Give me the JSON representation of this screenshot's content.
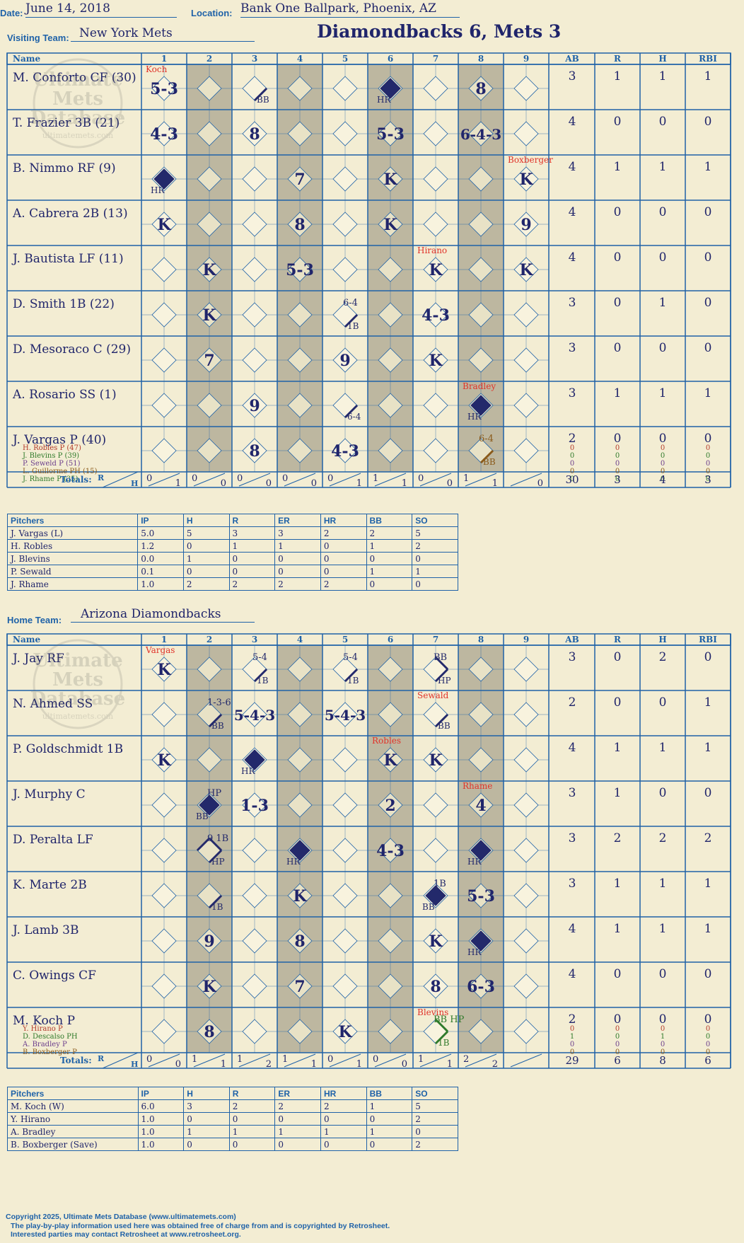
{
  "header": {
    "date_label": "Date:",
    "date": "June 14, 2018",
    "location_label": "Location:",
    "location": "Bank One Ballpark, Phoenix, AZ",
    "game_title": "Diamondbacks 6, Mets 3"
  },
  "watermark": {
    "line1": "Ultimate",
    "line2": "Mets",
    "line3": "Database",
    "line4": "ultimatemets.com"
  },
  "grid_headers": {
    "name": "Name",
    "innings": [
      "1",
      "2",
      "3",
      "4",
      "5",
      "6",
      "7",
      "8",
      "9"
    ],
    "stats": [
      "AB",
      "R",
      "H",
      "RBI"
    ],
    "totals": "Totals:",
    "r": "R",
    "h": "H"
  },
  "visiting": {
    "team_label": "Visiting Team:",
    "team": "New York Mets",
    "shaded_innings": [
      2,
      4,
      6,
      8
    ],
    "batters": [
      {
        "name": "M. Conforto CF (30)",
        "stats": [
          "3",
          "1",
          "1",
          "1"
        ]
      },
      {
        "name": "T. Frazier 3B (21)",
        "stats": [
          "4",
          "0",
          "0",
          "0"
        ]
      },
      {
        "name": "B. Nimmo RF (9)",
        "stats": [
          "4",
          "1",
          "1",
          "1"
        ]
      },
      {
        "name": "A. Cabrera 2B (13)",
        "stats": [
          "4",
          "0",
          "0",
          "0"
        ]
      },
      {
        "name": "J. Bautista LF (11)",
        "stats": [
          "4",
          "0",
          "0",
          "0"
        ]
      },
      {
        "name": "D. Smith 1B (22)",
        "stats": [
          "3",
          "0",
          "1",
          "0"
        ]
      },
      {
        "name": "D. Mesoraco C (29)",
        "stats": [
          "3",
          "0",
          "0",
          "0"
        ]
      },
      {
        "name": "A. Rosario SS (1)",
        "stats": [
          "3",
          "1",
          "1",
          "1"
        ]
      },
      {
        "name": "J. Vargas P (40)",
        "stats": [
          "2",
          "0",
          "0",
          "0"
        ]
      }
    ],
    "subs": [
      {
        "name": "H. Robles P (47)",
        "color": "#b33a2a"
      },
      {
        "name": "J. Blevins P (39)",
        "color": "#2f7a2a"
      },
      {
        "name": "P. Seweld P (51)",
        "color": "#6b3d8c"
      },
      {
        "name": "L. Guillorme PH (15)",
        "color": "#8a5a1a"
      },
      {
        "name": "J. Rhame P (35)",
        "color": "#2f7a2a"
      }
    ],
    "sub_stats": [
      [
        "0",
        "0",
        "0",
        "0"
      ],
      [
        "0",
        "0",
        "0",
        "0"
      ],
      [
        "0",
        "0",
        "0",
        "0"
      ],
      [
        "0",
        "0",
        "0",
        "0"
      ],
      [
        "0",
        "0",
        "0",
        "0"
      ]
    ],
    "cells": [
      {
        "r": 0,
        "i": 1,
        "t": "5-3"
      },
      {
        "r": 0,
        "i": 3,
        "bases": 1,
        "corner": "BB"
      },
      {
        "r": 0,
        "i": 6,
        "diamond": "full",
        "corner": "HR"
      },
      {
        "r": 0,
        "i": 8,
        "t": "8"
      },
      {
        "r": 1,
        "i": 1,
        "t": "4-3"
      },
      {
        "r": 1,
        "i": 3,
        "t": "8"
      },
      {
        "r": 1,
        "i": 6,
        "t": "5-3"
      },
      {
        "r": 1,
        "i": 8,
        "t": "6-4-3"
      },
      {
        "r": 2,
        "i": 1,
        "diamond": "full",
        "corner": "HR"
      },
      {
        "r": 2,
        "i": 4,
        "t": "7"
      },
      {
        "r": 2,
        "i": 6,
        "t": "K"
      },
      {
        "r": 2,
        "i": 9,
        "t": "K"
      },
      {
        "r": 3,
        "i": 1,
        "t": "K"
      },
      {
        "r": 3,
        "i": 4,
        "t": "8"
      },
      {
        "r": 3,
        "i": 6,
        "t": "K"
      },
      {
        "r": 3,
        "i": 9,
        "t": "9"
      },
      {
        "r": 4,
        "i": 2,
        "t": "K"
      },
      {
        "r": 4,
        "i": 4,
        "t": "5-3"
      },
      {
        "r": 4,
        "i": 7,
        "t": "K"
      },
      {
        "r": 4,
        "i": 9,
        "t": "K"
      },
      {
        "r": 5,
        "i": 2,
        "t": "K"
      },
      {
        "r": 5,
        "i": 5,
        "bases": 1,
        "corner": "1B",
        "top": "6-4"
      },
      {
        "r": 5,
        "i": 7,
        "t": "4-3"
      },
      {
        "r": 6,
        "i": 2,
        "t": "7"
      },
      {
        "r": 6,
        "i": 5,
        "t": "9"
      },
      {
        "r": 6,
        "i": 7,
        "t": "K"
      },
      {
        "r": 7,
        "i": 3,
        "t": "9"
      },
      {
        "r": 7,
        "i": 5,
        "bases": 1,
        "corner": "6-4"
      },
      {
        "r": 7,
        "i": 8,
        "diamond": "full",
        "corner": "HR"
      },
      {
        "r": 8,
        "i": 3,
        "t": "8"
      },
      {
        "r": 8,
        "i": 5,
        "t": "4-3"
      },
      {
        "r": 8,
        "i": 8,
        "bases": 1,
        "corner": "BB",
        "top": "6-4",
        "color": "#8a5a1a"
      }
    ],
    "notes": [
      {
        "r": 0,
        "i": 1,
        "text": "Koch"
      },
      {
        "r": 2,
        "i": 9,
        "text": "Boxberger"
      },
      {
        "r": 4,
        "i": 7,
        "text": "Hirano"
      },
      {
        "r": 7,
        "i": 8,
        "text": "Bradley"
      }
    ],
    "totals": [
      [
        "0",
        "1"
      ],
      [
        "0",
        "0"
      ],
      [
        "0",
        "0"
      ],
      [
        "0",
        "0"
      ],
      [
        "0",
        "1"
      ],
      [
        "1",
        "1"
      ],
      [
        "0",
        "0"
      ],
      [
        "1",
        "1"
      ],
      [
        "",
        "0"
      ]
    ],
    "totals_stats": [
      "30",
      "3",
      "4",
      "3"
    ]
  },
  "visiting_pitchers": {
    "headers": [
      "Pitchers",
      "IP",
      "H",
      "R",
      "ER",
      "HR",
      "BB",
      "SO"
    ],
    "rows": [
      [
        "J. Vargas (L)",
        "5.0",
        "5",
        "3",
        "3",
        "2",
        "2",
        "5"
      ],
      [
        "H. Robles",
        "1.2",
        "0",
        "1",
        "1",
        "0",
        "1",
        "2"
      ],
      [
        "J. Blevins",
        "0.0",
        "1",
        "0",
        "0",
        "0",
        "0",
        "0"
      ],
      [
        "P. Sewald",
        "0.1",
        "0",
        "0",
        "0",
        "0",
        "1",
        "1"
      ],
      [
        "J. Rhame",
        "1.0",
        "2",
        "2",
        "2",
        "2",
        "0",
        "0"
      ]
    ]
  },
  "home": {
    "team_label": "Home Team:",
    "team": "Arizona Diamondbacks",
    "shaded_innings": [
      2,
      4,
      6,
      8
    ],
    "batters": [
      {
        "name": "J. Jay RF",
        "stats": [
          "3",
          "0",
          "2",
          "0"
        ]
      },
      {
        "name": "N. Ahmed SS",
        "stats": [
          "2",
          "0",
          "0",
          "1"
        ]
      },
      {
        "name": "P. Goldschmidt 1B",
        "stats": [
          "4",
          "1",
          "1",
          "1"
        ]
      },
      {
        "name": "J. Murphy C",
        "stats": [
          "3",
          "1",
          "0",
          "0"
        ]
      },
      {
        "name": "D. Peralta LF",
        "stats": [
          "3",
          "2",
          "2",
          "2"
        ]
      },
      {
        "name": "K. Marte 2B",
        "stats": [
          "3",
          "1",
          "1",
          "1"
        ]
      },
      {
        "name": "J. Lamb 3B",
        "stats": [
          "4",
          "1",
          "1",
          "1"
        ]
      },
      {
        "name": "C. Owings CF",
        "stats": [
          "4",
          "0",
          "0",
          "0"
        ]
      },
      {
        "name": "M. Koch P",
        "stats": [
          "2",
          "0",
          "0",
          "0"
        ]
      }
    ],
    "subs": [
      {
        "name": "Y. Hirano P",
        "color": "#b33a2a"
      },
      {
        "name": "D. Descalso PH",
        "color": "#2f7a2a"
      },
      {
        "name": "A. Bradley P",
        "color": "#6b3d8c"
      },
      {
        "name": "B. Boxberger P",
        "color": "#8a5a1a"
      }
    ],
    "sub_stats": [
      [
        "0",
        "0",
        "0",
        "0"
      ],
      [
        "1",
        "0",
        "1",
        "0"
      ],
      [
        "0",
        "0",
        "0",
        "0"
      ],
      [
        "0",
        "0",
        "0",
        "0"
      ]
    ],
    "cells": [
      {
        "r": 0,
        "i": 1,
        "t": "K"
      },
      {
        "r": 0,
        "i": 3,
        "bases": 1,
        "corner": "1B",
        "top": "5-4"
      },
      {
        "r": 0,
        "i": 5,
        "bases": 1,
        "corner": "1B",
        "top": "5-4"
      },
      {
        "r": 0,
        "i": 7,
        "bases": 2,
        "corner": "HP",
        "top": "BB"
      },
      {
        "r": 1,
        "i": 2,
        "bases": 1,
        "corner": "BB",
        "top": "1-3-6"
      },
      {
        "r": 1,
        "i": 3,
        "t": "5-4-3"
      },
      {
        "r": 1,
        "i": 5,
        "t": "5-4-3"
      },
      {
        "r": 1,
        "i": 7,
        "bases": 1,
        "corner": "BB"
      },
      {
        "r": 2,
        "i": 1,
        "t": "K"
      },
      {
        "r": 2,
        "i": 3,
        "diamond": "full",
        "corner": "HR"
      },
      {
        "r": 2,
        "i": 6,
        "t": "K"
      },
      {
        "r": 2,
        "i": 7,
        "t": "K"
      },
      {
        "r": 3,
        "i": 2,
        "diamond": "full",
        "corner": "BB",
        "top": "HP"
      },
      {
        "r": 3,
        "i": 3,
        "t": "1-3"
      },
      {
        "r": 3,
        "i": 6,
        "t": "2"
      },
      {
        "r": 3,
        "i": 8,
        "t": "4"
      },
      {
        "r": 4,
        "i": 2,
        "bases": 3,
        "corner": "HP",
        "top": "9   1B"
      },
      {
        "r": 4,
        "i": 4,
        "diamond": "full",
        "corner": "HR"
      },
      {
        "r": 4,
        "i": 6,
        "t": "4-3"
      },
      {
        "r": 4,
        "i": 8,
        "diamond": "full",
        "corner": "HR"
      },
      {
        "r": 5,
        "i": 2,
        "bases": 1,
        "corner": "1B"
      },
      {
        "r": 5,
        "i": 4,
        "t": "K"
      },
      {
        "r": 5,
        "i": 7,
        "diamond": "full",
        "corner": "BB",
        "top": "1B"
      },
      {
        "r": 5,
        "i": 8,
        "t": "5-3"
      },
      {
        "r": 6,
        "i": 2,
        "t": "9"
      },
      {
        "r": 6,
        "i": 4,
        "t": "8"
      },
      {
        "r": 6,
        "i": 7,
        "t": "K"
      },
      {
        "r": 6,
        "i": 8,
        "diamond": "full",
        "corner": "HR"
      },
      {
        "r": 7,
        "i": 2,
        "t": "K"
      },
      {
        "r": 7,
        "i": 4,
        "t": "7"
      },
      {
        "r": 7,
        "i": 7,
        "t": "8"
      },
      {
        "r": 7,
        "i": 8,
        "t": "6-3"
      },
      {
        "r": 8,
        "i": 2,
        "t": "8"
      },
      {
        "r": 8,
        "i": 5,
        "t": "K"
      },
      {
        "r": 8,
        "i": 7,
        "bases": 2,
        "corner": "1B",
        "top": "BB HP",
        "color": "#2f7a2a"
      }
    ],
    "notes": [
      {
        "r": 0,
        "i": 1,
        "text": "Vargas"
      },
      {
        "r": 1,
        "i": 7,
        "text": "Sewald"
      },
      {
        "r": 2,
        "i": 6,
        "text": "Robles"
      },
      {
        "r": 3,
        "i": 8,
        "text": "Rhame"
      },
      {
        "r": 8,
        "i": 7,
        "text": "Blevins"
      }
    ],
    "totals": [
      [
        "0",
        "0"
      ],
      [
        "1",
        "1"
      ],
      [
        "1",
        "2"
      ],
      [
        "1",
        "1"
      ],
      [
        "0",
        "1"
      ],
      [
        "0",
        "0"
      ],
      [
        "1",
        "1"
      ],
      [
        "2",
        "2"
      ],
      [
        "",
        ""
      ]
    ],
    "totals_stats": [
      "29",
      "6",
      "8",
      "6"
    ]
  },
  "home_pitchers": {
    "headers": [
      "Pitchers",
      "IP",
      "H",
      "R",
      "ER",
      "HR",
      "BB",
      "SO"
    ],
    "rows": [
      [
        "M. Koch (W)",
        "6.0",
        "3",
        "2",
        "2",
        "2",
        "1",
        "5"
      ],
      [
        "Y. Hirano",
        "1.0",
        "0",
        "0",
        "0",
        "0",
        "0",
        "2"
      ],
      [
        "A. Bradley",
        "1.0",
        "1",
        "1",
        "1",
        "1",
        "1",
        "0"
      ],
      [
        "B. Boxberger (Save)",
        "1.0",
        "0",
        "0",
        "0",
        "0",
        "0",
        "2"
      ]
    ]
  },
  "footer": {
    "line1": "Copyright 2025, Ultimate Mets Database (www.ultimatemets.com)",
    "line2": "The play-by-play information used here was obtained free of charge from and is copyrighted by Retrosheet.",
    "line3": "Interested parties may contact Retrosheet at www.retrosheet.org."
  },
  "colors": {
    "ink": "#20256b",
    "grid": "#1f62a8",
    "shade": "#bdb7a0",
    "paper": "#f3edd3",
    "note": "#e0332a",
    "hit": "#23296b"
  }
}
